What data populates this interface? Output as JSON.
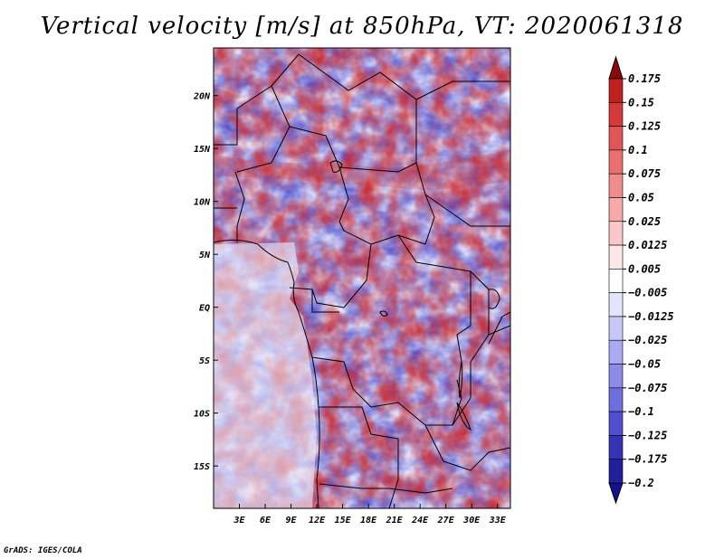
{
  "title": "Vertical velocity [m/s] at 850hPa, VT: 2020061318",
  "credit": "GrADS: IGES/COLA",
  "map": {
    "lon_range": [
      0,
      34.5
    ],
    "lat_range": [
      -19,
      24.5
    ],
    "lon_ticks": [
      {
        "value": 3,
        "label": "3E"
      },
      {
        "value": 6,
        "label": "6E"
      },
      {
        "value": 9,
        "label": "9E"
      },
      {
        "value": 12,
        "label": "12E"
      },
      {
        "value": 15,
        "label": "15E"
      },
      {
        "value": 18,
        "label": "18E"
      },
      {
        "value": 21,
        "label": "21E"
      },
      {
        "value": 24,
        "label": "24E"
      },
      {
        "value": 27,
        "label": "27E"
      },
      {
        "value": 30,
        "label": "30E"
      },
      {
        "value": 33,
        "label": "33E"
      }
    ],
    "lat_ticks": [
      {
        "value": 20,
        "label": "20N"
      },
      {
        "value": 15,
        "label": "15N"
      },
      {
        "value": 10,
        "label": "10N"
      },
      {
        "value": 5,
        "label": "5N"
      },
      {
        "value": 0,
        "label": "EQ"
      },
      {
        "value": -5,
        "label": "5S"
      },
      {
        "value": -10,
        "label": "10S"
      },
      {
        "value": -15,
        "label": "15S"
      }
    ]
  },
  "colorbar": {
    "levels": [
      {
        "label": "0.175",
        "color": "#a01010"
      },
      {
        "label": "0.15",
        "color": "#c02020"
      },
      {
        "label": "0.125",
        "color": "#d43a3a"
      },
      {
        "label": "0.1",
        "color": "#e05555"
      },
      {
        "label": "0.075",
        "color": "#ea7070"
      },
      {
        "label": "0.05",
        "color": "#f08c8c"
      },
      {
        "label": "0.025",
        "color": "#f6aaaa"
      },
      {
        "label": "0.0125",
        "color": "#fac8c8"
      },
      {
        "label": "0.005",
        "color": "#fde6e6"
      },
      {
        "label": "−0.005",
        "color": "#ffffff"
      },
      {
        "label": "−0.0125",
        "color": "#e4e4fc"
      },
      {
        "label": "−0.025",
        "color": "#c8c8f8"
      },
      {
        "label": "−0.05",
        "color": "#aaaaf2"
      },
      {
        "label": "−0.075",
        "color": "#8c8ce8"
      },
      {
        "label": "−0.1",
        "color": "#6e6edc"
      },
      {
        "label": "−0.125",
        "color": "#5050cc"
      },
      {
        "label": "−0.175",
        "color": "#3434b4"
      },
      {
        "label": "−0.2",
        "color": "#20209a"
      }
    ],
    "top_arrow_color": "#8a0a0a",
    "bottom_arrow_color": "#14148a"
  }
}
